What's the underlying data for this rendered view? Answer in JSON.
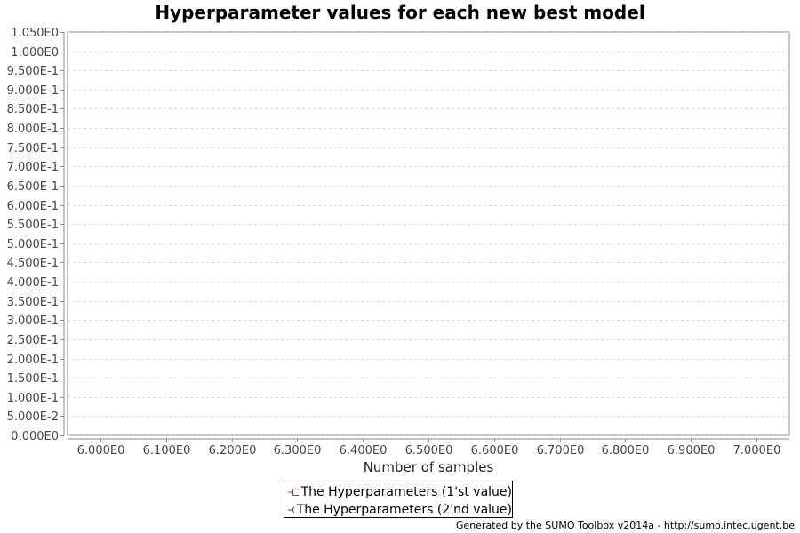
{
  "chart_data": {
    "type": "line",
    "title": "Hyperparameter values for each new best model",
    "xlabel": "Number of samples",
    "ylabel": "",
    "xlim": [
      5.95,
      7.05
    ],
    "ylim": [
      0,
      1.05
    ],
    "x_ticks": [
      6.0,
      6.1,
      6.2,
      6.3,
      6.4,
      6.5,
      6.6,
      6.7,
      6.8,
      6.9,
      7.0
    ],
    "x_tick_labels": [
      "6.000E0",
      "6.100E0",
      "6.200E0",
      "6.300E0",
      "6.400E0",
      "6.500E0",
      "6.600E0",
      "6.700E0",
      "6.800E0",
      "6.900E0",
      "7.000E0"
    ],
    "y_ticks": [
      0,
      0.05,
      0.1,
      0.15,
      0.2,
      0.25,
      0.3,
      0.35,
      0.4,
      0.45,
      0.5,
      0.55,
      0.6,
      0.65,
      0.7,
      0.75,
      0.8,
      0.85,
      0.9,
      0.95,
      1.0,
      1.05
    ],
    "y_tick_labels": [
      "0.000E0",
      "5.000E-2",
      "1.000E-1",
      "1.500E-1",
      "2.000E-1",
      "2.500E-1",
      "3.000E-1",
      "3.500E-1",
      "4.000E-1",
      "4.500E-1",
      "5.000E-1",
      "5.500E-1",
      "6.000E-1",
      "6.500E-1",
      "7.000E-1",
      "7.500E-1",
      "8.000E-1",
      "8.500E-1",
      "9.000E-1",
      "9.500E-1",
      "1.000E0",
      "1.050E0"
    ],
    "grid": true,
    "legend_position": "bottom-center",
    "series": [
      {
        "name": "The Hyperparameters (1'st value)",
        "color": "#cc3333",
        "marker": "square",
        "x": [],
        "y": []
      },
      {
        "name": "The Hyperparameters (2'nd value)",
        "color": "#3333cc",
        "marker": "circle",
        "x": [],
        "y": []
      }
    ]
  },
  "footer": "Generated by the SUMO Toolbox v2014a - http://sumo.intec.ugent.be"
}
